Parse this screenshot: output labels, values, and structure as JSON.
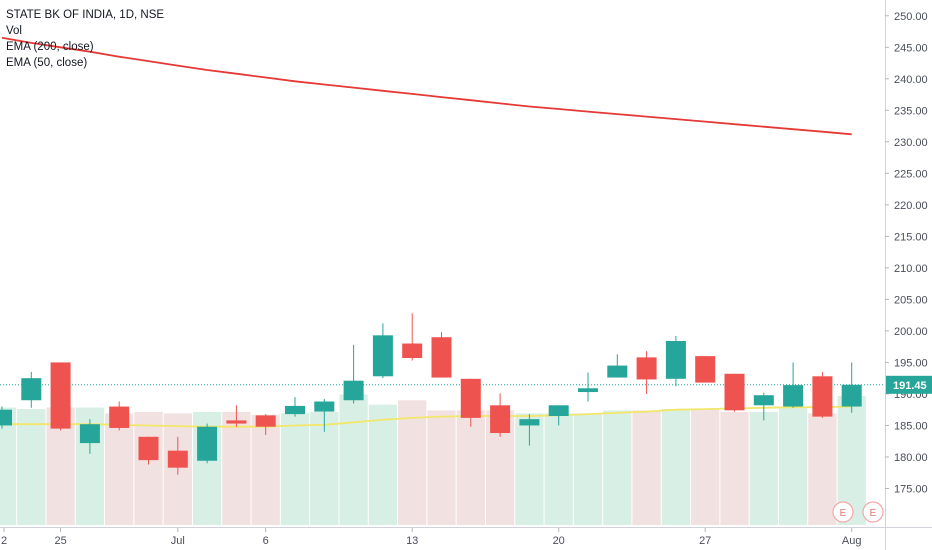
{
  "legend": {
    "symbol": "STATE BK OF INDIA, 1D, NSE",
    "vol": "Vol",
    "ema200": "EMA (200, close)",
    "ema50": "EMA (50, close)"
  },
  "last_price_label": "191.45",
  "earnings_markers": [
    "E",
    "E"
  ],
  "colors": {
    "up": "#26a69a",
    "down": "#ef5350",
    "up_volume": "#d8efe5",
    "down_volume": "#f2e1e1",
    "ema200": "#e53935",
    "ema50": "#f2e66b",
    "price_line": "#26a69a"
  },
  "chart_data": {
    "type": "candlestick",
    "y_axis": {
      "min": 170,
      "max": 252.5,
      "ticks": [
        175,
        180,
        185,
        190,
        195,
        200,
        205,
        210,
        215,
        220,
        225,
        230,
        235,
        240,
        245,
        250
      ],
      "tick_labels": [
        "175.00",
        "180.00",
        "185.00",
        "190.00",
        "195.00",
        "200.00",
        "205.00",
        "210.00",
        "215.00",
        "220.00",
        "225.00",
        "230.00",
        "235.00",
        "240.00",
        "245.00",
        "250.00"
      ]
    },
    "x_axis": {
      "labels": [
        {
          "text": "2",
          "index": -0.1
        },
        {
          "text": "25",
          "index": 2
        },
        {
          "text": "Jul",
          "index": 6
        },
        {
          "text": "6",
          "index": 9
        },
        {
          "text": "13",
          "index": 14
        },
        {
          "text": "20",
          "index": 19
        },
        {
          "text": "27",
          "index": 24
        },
        {
          "text": "Aug",
          "index": 29
        }
      ]
    },
    "candles": [
      {
        "o": 185.0,
        "h": 188.0,
        "l": 184.5,
        "c": 187.5
      },
      {
        "o": 189.0,
        "h": 193.5,
        "l": 187.8,
        "c": 192.5
      },
      {
        "o": 195.0,
        "h": 195.0,
        "l": 184.2,
        "c": 184.5
      },
      {
        "o": 182.2,
        "h": 186.0,
        "l": 180.5,
        "c": 185.2
      },
      {
        "o": 188.0,
        "h": 188.8,
        "l": 184.2,
        "c": 184.6
      },
      {
        "o": 183.2,
        "h": 183.2,
        "l": 178.8,
        "c": 179.5
      },
      {
        "o": 181.0,
        "h": 183.2,
        "l": 177.2,
        "c": 178.3
      },
      {
        "o": 179.4,
        "h": 185.3,
        "l": 179.0,
        "c": 184.8
      },
      {
        "o": 185.8,
        "h": 188.2,
        "l": 184.8,
        "c": 185.3
      },
      {
        "o": 186.6,
        "h": 186.8,
        "l": 183.5,
        "c": 184.8
      },
      {
        "o": 186.8,
        "h": 189.5,
        "l": 186.4,
        "c": 188.1
      },
      {
        "o": 187.2,
        "h": 189.2,
        "l": 184.0,
        "c": 188.8
      },
      {
        "o": 189.0,
        "h": 197.8,
        "l": 188.5,
        "c": 192.1
      },
      {
        "o": 192.8,
        "h": 201.2,
        "l": 192.5,
        "c": 199.3
      },
      {
        "o": 198.0,
        "h": 202.8,
        "l": 195.3,
        "c": 195.7
      },
      {
        "o": 199.0,
        "h": 199.8,
        "l": 192.6,
        "c": 192.6
      },
      {
        "o": 192.4,
        "h": 192.4,
        "l": 184.8,
        "c": 186.2
      },
      {
        "o": 188.2,
        "h": 190.1,
        "l": 183.2,
        "c": 183.8
      },
      {
        "o": 185.0,
        "h": 186.8,
        "l": 181.8,
        "c": 186.0
      },
      {
        "o": 186.5,
        "h": 188.2,
        "l": 185.0,
        "c": 188.2
      },
      {
        "o": 190.3,
        "h": 193.4,
        "l": 188.8,
        "c": 190.9
      },
      {
        "o": 192.6,
        "h": 196.3,
        "l": 192.6,
        "c": 194.5
      },
      {
        "o": 195.8,
        "h": 196.8,
        "l": 190.0,
        "c": 192.3
      },
      {
        "o": 192.4,
        "h": 199.2,
        "l": 191.2,
        "c": 198.4
      },
      {
        "o": 196.0,
        "h": 196.0,
        "l": 191.8,
        "c": 191.8
      },
      {
        "o": 193.2,
        "h": 193.2,
        "l": 187.2,
        "c": 187.4
      },
      {
        "o": 188.2,
        "h": 190.2,
        "l": 185.8,
        "c": 189.8
      },
      {
        "o": 188.0,
        "h": 195.0,
        "l": 187.8,
        "c": 191.4
      },
      {
        "o": 192.8,
        "h": 193.5,
        "l": 186.2,
        "c": 186.4
      },
      {
        "o": 188.0,
        "h": 195.0,
        "l": 187.0,
        "c": 191.45
      }
    ],
    "volumes": [
      81,
      80,
      81,
      81,
      77,
      78,
      77,
      78,
      78,
      76,
      77,
      78,
      90,
      83,
      86,
      79,
      79,
      79,
      77,
      77,
      77,
      79,
      79,
      80,
      80,
      78,
      78,
      81,
      77,
      89
    ],
    "volume_axis_max": 100,
    "ema50": [
      185.2,
      185.2,
      185.2,
      185.2,
      185.1,
      185.0,
      184.9,
      184.8,
      184.8,
      184.8,
      185.0,
      185.1,
      185.5,
      185.9,
      186.2,
      186.4,
      186.5,
      186.5,
      186.5,
      186.6,
      186.8,
      187.0,
      187.2,
      187.5,
      187.6,
      187.7,
      187.8,
      187.9,
      187.9,
      188.0
    ],
    "ema200": [
      246.5,
      245.7,
      245.0,
      244.3,
      243.5,
      242.8,
      242.1,
      241.4,
      240.8,
      240.2,
      239.6,
      239.1,
      238.6,
      238.1,
      237.6,
      237.1,
      236.6,
      236.1,
      235.6,
      235.2,
      234.8,
      234.4,
      234.0,
      233.6,
      233.2,
      232.8,
      232.4,
      232.0,
      231.6,
      231.2
    ],
    "last_price": 191.45
  }
}
